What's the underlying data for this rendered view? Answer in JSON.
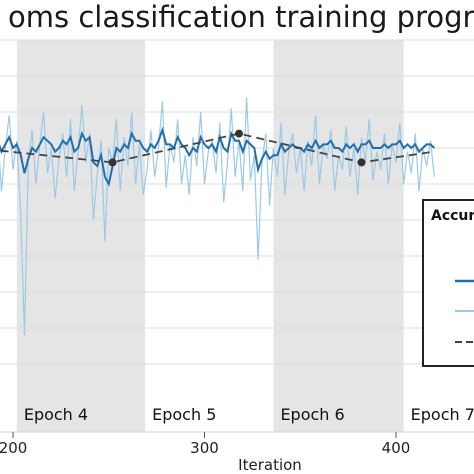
{
  "chart_data": {
    "type": "line",
    "title": "oms  classification training progres",
    "xlabel": "Iteration",
    "ylabel": "",
    "xlim": [
      180,
      420
    ],
    "ylim": [
      0,
      100
    ],
    "x_ticks": [
      200,
      300,
      400
    ],
    "x_tick_labels": [
      "200",
      "300",
      "400"
    ],
    "grid": true,
    "epochs": [
      {
        "label": "Epoch 4",
        "start": 202,
        "end": 269,
        "shaded": true
      },
      {
        "label": "Epoch 5",
        "start": 269,
        "end": 336,
        "shaded": false
      },
      {
        "label": "Epoch 6",
        "start": 336,
        "end": 404,
        "shaded": true
      },
      {
        "label": "Epoch 7",
        "start": 404,
        "end": 420,
        "shaded": false
      }
    ],
    "legend": {
      "title": "Accur",
      "position": "right",
      "entries": 3
    },
    "colors": {
      "smoothed": "#1f6fb0",
      "raw": "#9cc9e8",
      "validation": "#444444",
      "band": "#e5e5e5",
      "grid": "#dddddd"
    },
    "series": [
      {
        "role": "raw",
        "x": [
          180,
          182,
          184,
          186,
          188,
          190,
          192,
          194,
          196,
          198,
          200,
          202,
          204,
          206,
          208,
          210,
          212,
          214,
          216,
          218,
          220,
          222,
          224,
          226,
          228,
          230,
          232,
          234,
          236,
          238,
          240,
          242,
          244,
          246,
          248,
          250,
          252,
          254,
          256,
          258,
          260,
          262,
          264,
          266,
          268,
          270,
          272,
          274,
          276,
          278,
          280,
          282,
          284,
          286,
          288,
          290,
          292,
          294,
          296,
          298,
          300,
          302,
          304,
          306,
          308,
          310,
          312,
          314,
          316,
          318,
          320,
          322,
          324,
          326,
          328,
          330,
          332,
          334,
          336,
          338,
          340,
          342,
          344,
          346,
          348,
          350,
          352,
          354,
          356,
          358,
          360,
          362,
          364,
          366,
          368,
          370,
          372,
          374,
          376,
          378,
          380,
          382,
          384,
          386,
          388,
          390,
          392,
          394,
          396,
          398,
          400,
          402,
          404,
          406,
          408,
          410,
          412,
          414,
          416,
          418,
          420
        ],
        "y": [
          68,
          76,
          60,
          71,
          83,
          65,
          74,
          58,
          70,
          79,
          64,
          72,
          52,
          18,
          66,
          75,
          60,
          71,
          80,
          63,
          70,
          56,
          67,
          74,
          62,
          78,
          58,
          69,
          82,
          66,
          74,
          50,
          63,
          72,
          44,
          70,
          66,
          78,
          58,
          73,
          65,
          80,
          60,
          71,
          57,
          64,
          75,
          62,
          70,
          83,
          59,
          71,
          66,
          78,
          60,
          68,
          57,
          73,
          65,
          80,
          60,
          69,
          72,
          63,
          77,
          55,
          66,
          81,
          62,
          72,
          58,
          84,
          61,
          68,
          39,
          66,
          74,
          54,
          70,
          62,
          77,
          57,
          69,
          74,
          63,
          70,
          58,
          72,
          65,
          79,
          60,
          71,
          67,
          75,
          58,
          68,
          64,
          76,
          62,
          70,
          57,
          73,
          66,
          78,
          61,
          69,
          64,
          74,
          60,
          71,
          66,
          77,
          60,
          69,
          63,
          74,
          58,
          70,
          65,
          72,
          62
        ]
      },
      {
        "role": "smoothed",
        "x": [
          180,
          182,
          184,
          186,
          188,
          190,
          192,
          194,
          196,
          198,
          200,
          202,
          204,
          206,
          208,
          210,
          212,
          214,
          216,
          218,
          220,
          222,
          224,
          226,
          228,
          230,
          232,
          234,
          236,
          238,
          240,
          242,
          244,
          246,
          248,
          250,
          252,
          254,
          256,
          258,
          260,
          262,
          264,
          266,
          268,
          270,
          272,
          274,
          276,
          278,
          280,
          282,
          284,
          286,
          288,
          290,
          292,
          294,
          296,
          298,
          300,
          302,
          304,
          306,
          308,
          310,
          312,
          314,
          316,
          318,
          320,
          322,
          324,
          326,
          328,
          330,
          332,
          334,
          336,
          338,
          340,
          342,
          344,
          346,
          348,
          350,
          352,
          354,
          356,
          358,
          360,
          362,
          364,
          366,
          368,
          370,
          372,
          374,
          376,
          378,
          380,
          382,
          384,
          386,
          388,
          390,
          392,
          394,
          396,
          398,
          400,
          402,
          404,
          406,
          408,
          410,
          412,
          414,
          416,
          418,
          420
        ],
        "y": [
          71,
          73,
          70,
          72,
          74,
          71,
          72,
          69,
          71,
          73,
          70,
          71,
          68,
          63,
          67,
          70,
          69,
          71,
          73,
          72,
          71,
          69,
          70,
          72,
          71,
          73,
          69,
          70,
          74,
          72,
          73,
          66,
          65,
          68,
          62,
          60,
          65,
          70,
          69,
          71,
          70,
          74,
          72,
          72,
          70,
          69,
          71,
          70,
          72,
          75,
          71,
          71,
          70,
          73,
          71,
          70,
          68,
          70,
          69,
          73,
          71,
          70,
          71,
          69,
          73,
          70,
          69,
          74,
          72,
          72,
          69,
          72,
          71,
          70,
          64,
          67,
          69,
          67,
          68,
          68,
          71,
          69,
          70,
          71,
          70,
          70,
          69,
          71,
          70,
          72,
          70,
          71,
          71,
          72,
          70,
          70,
          69,
          71,
          70,
          71,
          69,
          71,
          71,
          72,
          70,
          70,
          70,
          71,
          70,
          71,
          71,
          72,
          70,
          71,
          70,
          71,
          69,
          70,
          71,
          71,
          70
        ]
      },
      {
        "role": "validation",
        "x": [
          180,
          252,
          318,
          382,
          420
        ],
        "y": [
          70,
          66,
          74,
          66,
          69
        ]
      }
    ]
  }
}
